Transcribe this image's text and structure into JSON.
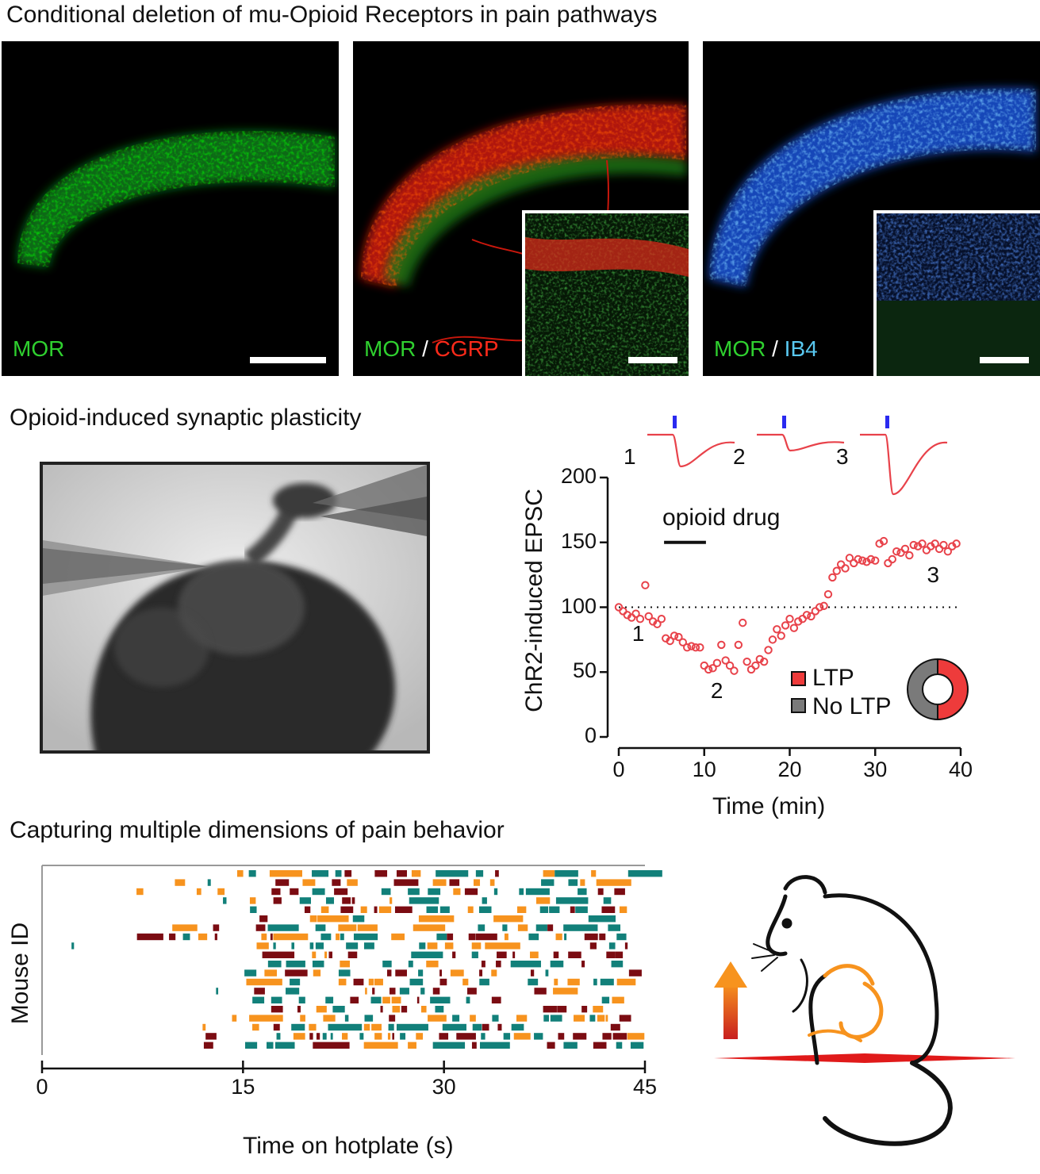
{
  "section_titles": {
    "a": "Conditional deletion of mu-Opioid Receptors in pain pathways",
    "b": "Opioid-induced synaptic plasticity",
    "c": "Capturing multiple dimensions of pain behavior"
  },
  "panels": {
    "p1": {
      "label_green": "MOR"
    },
    "p2": {
      "label_green": "MOR",
      "separator": " / ",
      "label_red": "CGRP"
    },
    "p3": {
      "label_green": "MOR",
      "separator": " / ",
      "label_cyan": "IB4"
    }
  },
  "colors": {
    "mor": "#2fd02f",
    "cgrp": "#ff2a1a",
    "ib4": "#59c8f0",
    "epsc": "#e8424a",
    "stim": "#2a2af0",
    "ltp": "#ee3b3b",
    "no_ltp": "#7a7a7a",
    "orange": "#f7931e",
    "darkred": "#7b0c12",
    "teal": "#12807a"
  },
  "chart_data": [
    {
      "type": "scatter",
      "title": "Opioid-induced synaptic plasticity",
      "xlabel": "Time (min)",
      "ylabel": "ChR2-induced EPSC",
      "xlim": [
        0,
        40
      ],
      "ylim": [
        0,
        200
      ],
      "xticks": [
        0,
        10,
        20,
        30,
        40
      ],
      "yticks": [
        0,
        50,
        100,
        150,
        200
      ],
      "baseline": 100,
      "drug_bar": {
        "label": "opioid drug",
        "start": 5.3,
        "end": 10.2
      },
      "trace_labels": [
        "1",
        "2",
        "3"
      ],
      "point_labels": [
        {
          "text": "1",
          "x": 2.3,
          "y": 79
        },
        {
          "text": "2",
          "x": 11.5,
          "y": 35
        },
        {
          "text": "3",
          "x": 36.8,
          "y": 124
        }
      ],
      "series": [
        {
          "name": "EPSC",
          "x": [
            0,
            0.5,
            1.0,
            1.5,
            2.0,
            2.5,
            3.1,
            3.5,
            4.0,
            4.5,
            5.0,
            5.5,
            6.0,
            6.5,
            7.0,
            7.5,
            8.0,
            8.5,
            9.0,
            9.5,
            10.0,
            10.5,
            11.0,
            11.5,
            12.0,
            12.5,
            13.0,
            13.5,
            14.0,
            14.5,
            15.0,
            15.5,
            16.0,
            16.5,
            17.0,
            17.5,
            18.0,
            18.5,
            19.0,
            19.5,
            20.0,
            20.5,
            21.0,
            21.5,
            22.0,
            22.5,
            23.0,
            23.5,
            24.0,
            24.5,
            25.0,
            25.5,
            26.0,
            26.5,
            27.0,
            27.5,
            28.0,
            28.5,
            29.0,
            29.5,
            30.0,
            30.5,
            31.0,
            31.5,
            32.0,
            32.5,
            33.0,
            33.5,
            34.0,
            34.5,
            35.0,
            35.5,
            36.0,
            36.5,
            37.0,
            37.5,
            38.0,
            38.5,
            39.0,
            39.5
          ],
          "y": [
            100,
            97,
            94,
            92,
            95,
            91,
            117,
            93,
            89,
            87,
            91,
            76,
            74,
            78,
            77,
            73,
            69,
            70,
            69,
            69,
            55,
            52,
            53,
            57,
            71,
            59,
            55,
            51,
            71,
            88,
            58,
            52,
            55,
            60,
            58,
            67,
            75,
            83,
            78,
            86,
            91,
            84,
            89,
            91,
            94,
            93,
            97,
            100,
            101,
            110,
            123,
            128,
            133,
            130,
            138,
            134,
            137,
            136,
            135,
            137,
            136,
            149,
            151,
            134,
            137,
            143,
            142,
            145,
            140,
            148,
            147,
            149,
            144,
            147,
            149,
            145,
            148,
            143,
            147,
            149
          ]
        }
      ],
      "legend": {
        "position": "bottom-right",
        "entries": [
          {
            "name": "LTP",
            "color": "#ee3b3b"
          },
          {
            "name": "No LTP",
            "color": "#7a7a7a"
          }
        ]
      },
      "donut": {
        "LTP": 0.5,
        "No LTP": 0.5
      }
    },
    {
      "type": "raster",
      "title": "Capturing multiple dimensions of pain behavior",
      "xlabel": "Time on hotplate (s)",
      "ylabel": "Mouse ID",
      "xlim": [
        0,
        45
      ],
      "xticks": [
        0,
        15,
        30,
        45
      ],
      "rows": 20,
      "categories": [
        "orange",
        "darkred",
        "teal"
      ],
      "seed": 7
    }
  ]
}
